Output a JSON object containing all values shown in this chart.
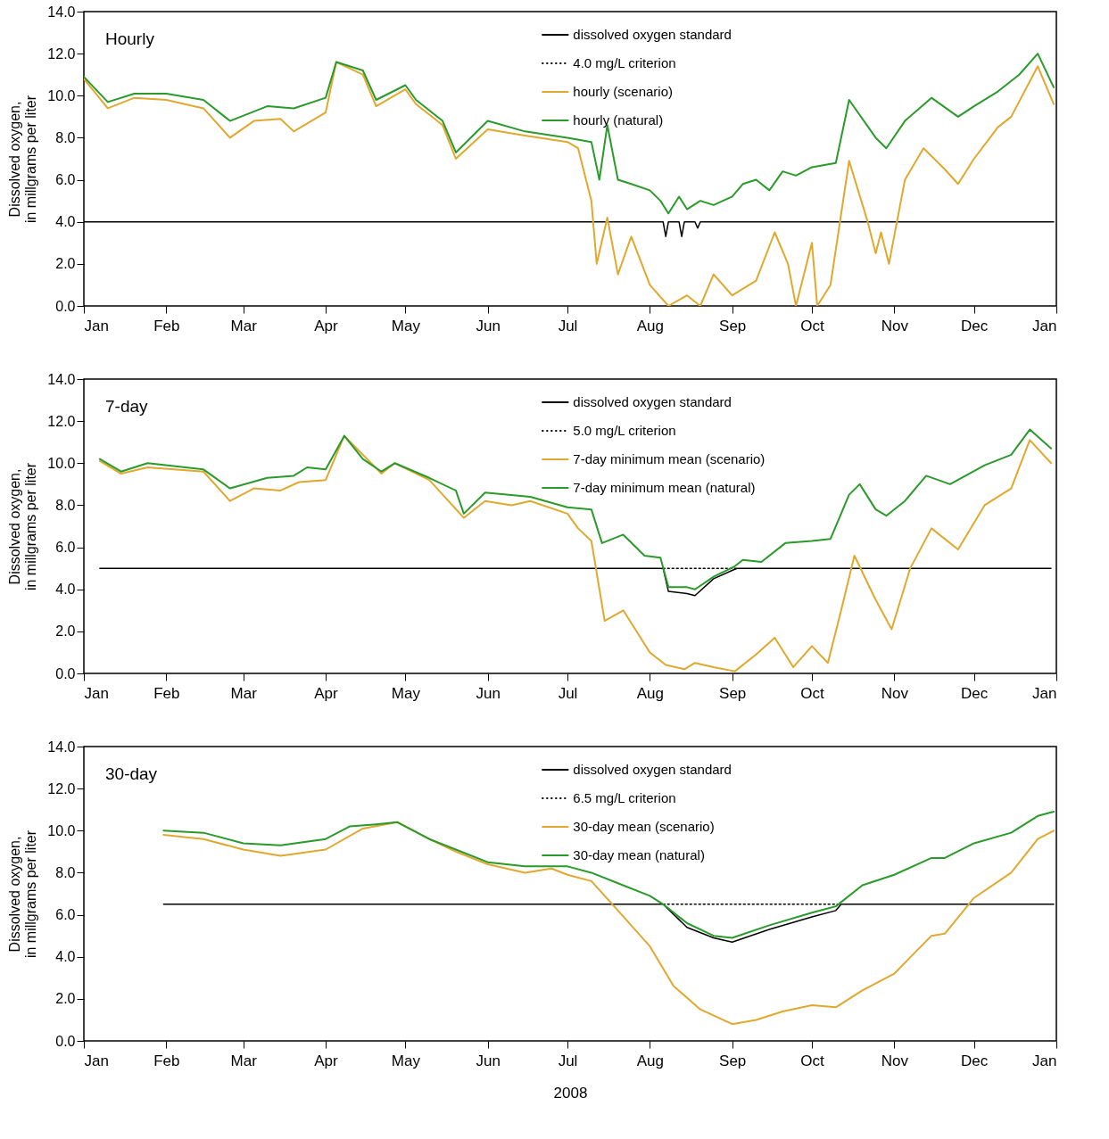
{
  "chart_data": [
    {
      "type": "line",
      "title": "Hourly",
      "ylabel": "Dissolved oxygen,\nin millgrams per liter",
      "xlim": [
        "2008-01-01",
        "2009-01-01"
      ],
      "ylim": [
        0,
        14
      ],
      "xticks": [
        {
          "value": "2008-01-01",
          "label": "Jan"
        },
        {
          "value": "2008-02-01",
          "label": "Feb"
        },
        {
          "value": "2008-03-01",
          "label": "Mar"
        },
        {
          "value": "2008-04-01",
          "label": "Apr"
        },
        {
          "value": "2008-05-01",
          "label": "May"
        },
        {
          "value": "2008-06-01",
          "label": "Jun"
        },
        {
          "value": "2008-07-01",
          "label": "Jul"
        },
        {
          "value": "2008-08-01",
          "label": "Aug"
        },
        {
          "value": "2008-09-01",
          "label": "Sep"
        },
        {
          "value": "2008-10-01",
          "label": "Oct"
        },
        {
          "value": "2008-11-01",
          "label": "Nov"
        },
        {
          "value": "2008-12-01",
          "label": "Dec"
        },
        {
          "value": "2009-01-01",
          "label": "Jan"
        }
      ],
      "yticks": [
        {
          "value": 0,
          "label": "0.0"
        },
        {
          "value": 2,
          "label": "2.0"
        },
        {
          "value": 4,
          "label": "4.0"
        },
        {
          "value": 6,
          "label": "6.0"
        },
        {
          "value": 8,
          "label": "8.0"
        },
        {
          "value": 10,
          "label": "10.0"
        },
        {
          "value": 12,
          "label": "12.0"
        },
        {
          "value": 14,
          "label": "14.0"
        }
      ],
      "grid": false,
      "legend": "top right",
      "series": [
        {
          "name": "dissolved oxygen standard",
          "color": "#000000",
          "line_style": "solid",
          "x": [
            "2008-01-01",
            "2008-08-06",
            "2008-08-07",
            "2008-08-08",
            "2008-08-12",
            "2008-08-13",
            "2008-08-14",
            "2008-08-18",
            "2008-08-19",
            "2008-08-20",
            "2008-12-31"
          ],
          "values": [
            4.0,
            4.0,
            3.3,
            4.0,
            4.0,
            3.3,
            4.0,
            4.0,
            3.7,
            4.0,
            4.0
          ]
        },
        {
          "name": "4.0 mg/L criterion",
          "color": "#000000",
          "line_style": "dotted"
        },
        {
          "name": "hourly (scenario)",
          "color": "#e0a82e",
          "line_style": "solid",
          "x": [
            "2008-01-01",
            "2008-01-10",
            "2008-01-20",
            "2008-02-01",
            "2008-02-15",
            "2008-02-25",
            "2008-03-05",
            "2008-03-15",
            "2008-03-20",
            "2008-04-01",
            "2008-04-05",
            "2008-04-15",
            "2008-04-20",
            "2008-05-01",
            "2008-05-05",
            "2008-05-15",
            "2008-05-20",
            "2008-06-01",
            "2008-06-15",
            "2008-07-01",
            "2008-07-05",
            "2008-07-10",
            "2008-07-12",
            "2008-07-16",
            "2008-07-20",
            "2008-07-25",
            "2008-08-01",
            "2008-08-08",
            "2008-08-15",
            "2008-08-20",
            "2008-08-25",
            "2008-09-01",
            "2008-09-10",
            "2008-09-17",
            "2008-09-22",
            "2008-09-25",
            "2008-10-01",
            "2008-10-03",
            "2008-10-08",
            "2008-10-15",
            "2008-10-22",
            "2008-10-25",
            "2008-10-27",
            "2008-10-30",
            "2008-11-05",
            "2008-11-12",
            "2008-11-20",
            "2008-11-25",
            "2008-12-01",
            "2008-12-10",
            "2008-12-15",
            "2008-12-25",
            "2008-12-31"
          ],
          "values": [
            10.8,
            9.4,
            9.9,
            9.8,
            9.4,
            8.0,
            8.8,
            8.9,
            8.3,
            9.2,
            11.6,
            11.0,
            9.5,
            10.3,
            9.6,
            8.6,
            7.0,
            8.4,
            8.1,
            7.8,
            7.5,
            5.0,
            2.0,
            4.2,
            1.5,
            3.3,
            1.0,
            0.0,
            0.5,
            0.0,
            1.5,
            0.5,
            1.2,
            3.5,
            2.0,
            0.0,
            3.0,
            0.0,
            1.0,
            6.9,
            4.0,
            2.5,
            3.5,
            2.0,
            6.0,
            7.5,
            6.5,
            5.8,
            7.0,
            8.5,
            9.0,
            11.4,
            9.6
          ]
        },
        {
          "name": "hourly (natural)",
          "color": "#2a9a2a",
          "line_style": "solid",
          "x": [
            "2008-01-01",
            "2008-01-10",
            "2008-01-20",
            "2008-02-01",
            "2008-02-15",
            "2008-02-25",
            "2008-03-10",
            "2008-03-20",
            "2008-04-01",
            "2008-04-05",
            "2008-04-15",
            "2008-04-20",
            "2008-05-01",
            "2008-05-05",
            "2008-05-15",
            "2008-05-20",
            "2008-06-01",
            "2008-06-15",
            "2008-07-01",
            "2008-07-10",
            "2008-07-13",
            "2008-07-16",
            "2008-07-20",
            "2008-07-25",
            "2008-08-01",
            "2008-08-05",
            "2008-08-08",
            "2008-08-12",
            "2008-08-15",
            "2008-08-20",
            "2008-08-25",
            "2008-09-01",
            "2008-09-05",
            "2008-09-10",
            "2008-09-15",
            "2008-09-20",
            "2008-09-25",
            "2008-10-01",
            "2008-10-10",
            "2008-10-15",
            "2008-10-25",
            "2008-10-29",
            "2008-11-05",
            "2008-11-15",
            "2008-11-25",
            "2008-12-01",
            "2008-12-10",
            "2008-12-18",
            "2008-12-25",
            "2008-12-31"
          ],
          "values": [
            10.9,
            9.7,
            10.1,
            10.1,
            9.8,
            8.8,
            9.5,
            9.4,
            9.9,
            11.6,
            11.2,
            9.8,
            10.5,
            9.8,
            8.8,
            7.3,
            8.8,
            8.3,
            8.0,
            7.8,
            6.0,
            8.6,
            6.0,
            5.8,
            5.5,
            5.0,
            4.4,
            5.2,
            4.6,
            5.0,
            4.8,
            5.2,
            5.8,
            6.0,
            5.5,
            6.4,
            6.2,
            6.6,
            6.8,
            9.8,
            8.0,
            7.5,
            8.8,
            9.9,
            9.0,
            9.5,
            10.2,
            11.0,
            12.0,
            10.4
          ]
        }
      ]
    },
    {
      "type": "line",
      "title": "7-day",
      "ylabel": "Dissolved oxygen,\nin millgrams per liter",
      "xlim": [
        "2008-01-01",
        "2009-01-01"
      ],
      "ylim": [
        0,
        14
      ],
      "xticks": [
        {
          "value": "2008-01-01",
          "label": "Jan"
        },
        {
          "value": "2008-02-01",
          "label": "Feb"
        },
        {
          "value": "2008-03-01",
          "label": "Mar"
        },
        {
          "value": "2008-04-01",
          "label": "Apr"
        },
        {
          "value": "2008-05-01",
          "label": "May"
        },
        {
          "value": "2008-06-01",
          "label": "Jun"
        },
        {
          "value": "2008-07-01",
          "label": "Jul"
        },
        {
          "value": "2008-08-01",
          "label": "Aug"
        },
        {
          "value": "2008-09-01",
          "label": "Sep"
        },
        {
          "value": "2008-10-01",
          "label": "Oct"
        },
        {
          "value": "2008-11-01",
          "label": "Nov"
        },
        {
          "value": "2008-12-01",
          "label": "Dec"
        },
        {
          "value": "2009-01-01",
          "label": "Jan"
        }
      ],
      "yticks": [
        {
          "value": 0,
          "label": "0.0"
        },
        {
          "value": 2,
          "label": "2.0"
        },
        {
          "value": 4,
          "label": "4.0"
        },
        {
          "value": 6,
          "label": "6.0"
        },
        {
          "value": 8,
          "label": "8.0"
        },
        {
          "value": 10,
          "label": "10.0"
        },
        {
          "value": 12,
          "label": "12.0"
        },
        {
          "value": 14,
          "label": "14.0"
        }
      ],
      "grid": false,
      "legend": "top right",
      "series": [
        {
          "name": "dissolved oxygen standard",
          "color": "#000000",
          "line_style": "solid",
          "x": [
            "2008-01-07",
            "2008-08-06",
            "2008-08-08",
            "2008-08-15",
            "2008-08-18",
            "2008-08-25",
            "2008-09-01",
            "2008-09-03",
            "2008-12-30"
          ],
          "values": [
            5.0,
            5.0,
            3.9,
            3.8,
            3.7,
            4.5,
            4.9,
            5.0,
            5.0
          ]
        },
        {
          "name": "5.0 mg/L criterion",
          "color": "#000000",
          "line_style": "dotted",
          "x": [
            "2008-08-06",
            "2008-09-03"
          ],
          "values": [
            5.0,
            5.0
          ]
        },
        {
          "name": "7-day minimum mean (scenario)",
          "color": "#e0a82e",
          "line_style": "solid",
          "x": [
            "2008-01-07",
            "2008-01-15",
            "2008-01-25",
            "2008-02-15",
            "2008-02-25",
            "2008-03-05",
            "2008-03-15",
            "2008-03-22",
            "2008-04-01",
            "2008-04-08",
            "2008-04-22",
            "2008-04-27",
            "2008-05-10",
            "2008-05-23",
            "2008-05-31",
            "2008-06-10",
            "2008-06-17",
            "2008-07-01",
            "2008-07-05",
            "2008-07-10",
            "2008-07-15",
            "2008-07-22",
            "2008-08-01",
            "2008-08-07",
            "2008-08-14",
            "2008-08-18",
            "2008-08-25",
            "2008-09-02",
            "2008-09-10",
            "2008-09-17",
            "2008-09-24",
            "2008-10-01",
            "2008-10-07",
            "2008-10-12",
            "2008-10-17",
            "2008-10-25",
            "2008-10-31",
            "2008-11-07",
            "2008-11-15",
            "2008-11-25",
            "2008-12-05",
            "2008-12-15",
            "2008-12-22",
            "2008-12-30"
          ],
          "values": [
            10.1,
            9.5,
            9.8,
            9.6,
            8.2,
            8.8,
            8.7,
            9.1,
            9.2,
            11.3,
            9.5,
            10.0,
            9.2,
            7.4,
            8.2,
            8.0,
            8.2,
            7.6,
            6.9,
            6.3,
            2.5,
            3.0,
            1.0,
            0.4,
            0.2,
            0.5,
            0.3,
            0.1,
            0.9,
            1.7,
            0.3,
            1.3,
            0.5,
            3.0,
            5.6,
            3.5,
            2.1,
            5.0,
            6.9,
            5.9,
            8.0,
            8.8,
            11.1,
            10.0
          ]
        },
        {
          "name": "7-day minimum mean (natural)",
          "color": "#2a9a2a",
          "line_style": "solid",
          "x": [
            "2008-01-07",
            "2008-01-15",
            "2008-01-25",
            "2008-02-15",
            "2008-02-25",
            "2008-03-10",
            "2008-03-20",
            "2008-03-25",
            "2008-04-01",
            "2008-04-08",
            "2008-04-15",
            "2008-04-22",
            "2008-04-27",
            "2008-05-10",
            "2008-05-20",
            "2008-05-23",
            "2008-05-31",
            "2008-06-17",
            "2008-07-01",
            "2008-07-10",
            "2008-07-14",
            "2008-07-22",
            "2008-07-30",
            "2008-08-05",
            "2008-08-08",
            "2008-08-15",
            "2008-08-18",
            "2008-08-25",
            "2008-09-02",
            "2008-09-05",
            "2008-09-12",
            "2008-09-21",
            "2008-10-01",
            "2008-10-08",
            "2008-10-15",
            "2008-10-19",
            "2008-10-25",
            "2008-10-29",
            "2008-11-05",
            "2008-11-13",
            "2008-11-22",
            "2008-12-05",
            "2008-12-15",
            "2008-12-22",
            "2008-12-30"
          ],
          "values": [
            10.2,
            9.6,
            10.0,
            9.7,
            8.8,
            9.3,
            9.4,
            9.8,
            9.7,
            11.3,
            10.2,
            9.6,
            10.0,
            9.3,
            8.7,
            7.6,
            8.6,
            8.4,
            7.9,
            7.8,
            6.2,
            6.6,
            5.6,
            5.5,
            4.1,
            4.1,
            4.0,
            4.6,
            5.1,
            5.4,
            5.3,
            6.2,
            6.3,
            6.4,
            8.5,
            9.0,
            7.8,
            7.5,
            8.2,
            9.4,
            9.0,
            9.9,
            10.4,
            11.6,
            10.7
          ]
        }
      ]
    },
    {
      "type": "line",
      "title": "30-day",
      "ylabel": "Dissolved oxygen,\nin millgrams per liter",
      "xlabel": "2008",
      "xlim": [
        "2008-01-01",
        "2009-01-01"
      ],
      "ylim": [
        0,
        14
      ],
      "xticks": [
        {
          "value": "2008-01-01",
          "label": "Jan"
        },
        {
          "value": "2008-02-01",
          "label": "Feb"
        },
        {
          "value": "2008-03-01",
          "label": "Mar"
        },
        {
          "value": "2008-04-01",
          "label": "Apr"
        },
        {
          "value": "2008-05-01",
          "label": "May"
        },
        {
          "value": "2008-06-01",
          "label": "Jun"
        },
        {
          "value": "2008-07-01",
          "label": "Jul"
        },
        {
          "value": "2008-08-01",
          "label": "Aug"
        },
        {
          "value": "2008-09-01",
          "label": "Sep"
        },
        {
          "value": "2008-10-01",
          "label": "Oct"
        },
        {
          "value": "2008-11-01",
          "label": "Nov"
        },
        {
          "value": "2008-12-01",
          "label": "Dec"
        },
        {
          "value": "2009-01-01",
          "label": "Jan"
        }
      ],
      "yticks": [
        {
          "value": 0,
          "label": "0.0"
        },
        {
          "value": 2,
          "label": "2.0"
        },
        {
          "value": 4,
          "label": "4.0"
        },
        {
          "value": 6,
          "label": "6.0"
        },
        {
          "value": 8,
          "label": "8.0"
        },
        {
          "value": 10,
          "label": "10.0"
        },
        {
          "value": 12,
          "label": "12.0"
        },
        {
          "value": 14,
          "label": "14.0"
        }
      ],
      "grid": false,
      "legend": "top right",
      "series": [
        {
          "name": "dissolved oxygen standard",
          "color": "#000000",
          "line_style": "solid",
          "x": [
            "2008-01-31",
            "2008-08-06",
            "2008-08-15",
            "2008-08-25",
            "2008-09-01",
            "2008-09-15",
            "2008-10-01",
            "2008-10-10",
            "2008-10-12",
            "2008-12-31"
          ],
          "values": [
            6.5,
            6.5,
            5.4,
            4.9,
            4.7,
            5.3,
            5.9,
            6.2,
            6.5,
            6.5
          ]
        },
        {
          "name": "6.5 mg/L criterion",
          "color": "#000000",
          "line_style": "dotted",
          "x": [
            "2008-08-06",
            "2008-10-12"
          ],
          "values": [
            6.5,
            6.5
          ]
        },
        {
          "name": "30-day mean (scenario)",
          "color": "#e0a82e",
          "line_style": "solid",
          "x": [
            "2008-01-31",
            "2008-02-15",
            "2008-03-01",
            "2008-03-15",
            "2008-04-01",
            "2008-04-15",
            "2008-04-28",
            "2008-05-10",
            "2008-05-20",
            "2008-06-01",
            "2008-06-15",
            "2008-06-25",
            "2008-07-01",
            "2008-07-10",
            "2008-07-20",
            "2008-08-01",
            "2008-08-10",
            "2008-08-20",
            "2008-09-01",
            "2008-09-10",
            "2008-09-20",
            "2008-10-01",
            "2008-10-10",
            "2008-10-20",
            "2008-11-01",
            "2008-11-15",
            "2008-11-20",
            "2008-12-01",
            "2008-12-15",
            "2008-12-25",
            "2008-12-31"
          ],
          "values": [
            9.8,
            9.6,
            9.1,
            8.8,
            9.1,
            10.1,
            10.4,
            9.6,
            9.0,
            8.4,
            8.0,
            8.2,
            7.9,
            7.6,
            6.2,
            4.5,
            2.6,
            1.5,
            0.8,
            1.0,
            1.4,
            1.7,
            1.6,
            2.4,
            3.2,
            5.0,
            5.1,
            6.8,
            8.0,
            9.6,
            10.0
          ]
        },
        {
          "name": "30-day mean (natural)",
          "color": "#2a9a2a",
          "line_style": "solid",
          "x": [
            "2008-01-31",
            "2008-02-15",
            "2008-03-01",
            "2008-03-15",
            "2008-04-01",
            "2008-04-10",
            "2008-04-20",
            "2008-04-28",
            "2008-05-10",
            "2008-05-20",
            "2008-06-01",
            "2008-06-15",
            "2008-07-01",
            "2008-07-10",
            "2008-07-20",
            "2008-08-01",
            "2008-08-06",
            "2008-08-15",
            "2008-08-25",
            "2008-09-01",
            "2008-09-15",
            "2008-10-01",
            "2008-10-10",
            "2008-10-20",
            "2008-11-01",
            "2008-11-15",
            "2008-11-20",
            "2008-12-01",
            "2008-12-15",
            "2008-12-25",
            "2008-12-31"
          ],
          "values": [
            10.0,
            9.9,
            9.4,
            9.3,
            9.6,
            10.2,
            10.3,
            10.4,
            9.6,
            9.1,
            8.5,
            8.3,
            8.3,
            8.0,
            7.5,
            6.9,
            6.5,
            5.6,
            5.0,
            4.9,
            5.5,
            6.1,
            6.4,
            7.4,
            7.9,
            8.7,
            8.7,
            9.4,
            9.9,
            10.7,
            10.9
          ]
        }
      ]
    }
  ]
}
